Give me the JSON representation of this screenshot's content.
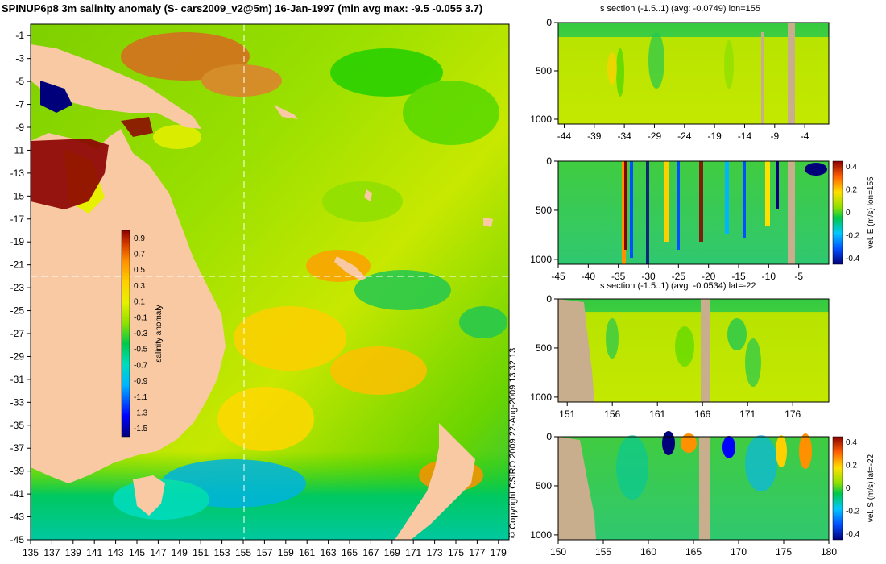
{
  "header": {
    "title": "SPINUP6p8 3m salinity anomaly (S- cars2009_v2@5m) 16-Jan-1997 (min avg max: -9.5 -0.055 3.7)",
    "copyright": "© Copyright CSIRO 2009   22-Aug-2009 13:32:13"
  },
  "colors": {
    "land": "#f9c9a4",
    "section_land": "#c8ae8c",
    "palette": [
      "#00007a",
      "#0000ff",
      "#00b4ff",
      "#00ddc0",
      "#00c84a",
      "#22d000",
      "#8fe000",
      "#e6f000",
      "#ffd000",
      "#ff9000",
      "#d84000",
      "#8b0000"
    ]
  },
  "chart_data": [
    {
      "id": "map",
      "type": "heatmap",
      "title": "SPINUP6p8 3m salinity anomaly (S- cars2009_v2@5m) 16-Jan-1997 (min avg max: -9.5 -0.055 3.7)",
      "x_ticks": [
        "135",
        "137",
        "139",
        "141",
        "143",
        "145",
        "147",
        "149",
        "151",
        "153",
        "155",
        "157",
        "159",
        "161",
        "163",
        "165",
        "167",
        "169",
        "171",
        "173",
        "175",
        "177",
        "179"
      ],
      "y_ticks": [
        "-1",
        "-3",
        "-5",
        "-7",
        "-9",
        "-11",
        "-13",
        "-15",
        "-17",
        "-19",
        "-21",
        "-23",
        "-25",
        "-27",
        "-29",
        "-31",
        "-33",
        "-35",
        "-37",
        "-39",
        "-41",
        "-43",
        "-45"
      ],
      "xlim": [
        135,
        180
      ],
      "ylim": [
        -45,
        0
      ],
      "guide_lon": 155,
      "guide_lat": -22,
      "colorbar": {
        "label": "salinity anomaly",
        "ticks": [
          "0.9",
          "0.7",
          "0.5",
          "0.3",
          "0.1",
          "-0.1",
          "-0.3",
          "-0.5",
          "-0.7",
          "-0.9",
          "-1.1",
          "-1.3",
          "-1.5"
        ],
        "range": [
          -1.6,
          1.0
        ]
      },
      "summary": {
        "min": -9.5,
        "avg": -0.055,
        "max": 3.7
      }
    },
    {
      "id": "s-section-lon",
      "type": "heatmap",
      "title": "s section (-1.5..1) (avg: -0.0749) lon=155",
      "x_ticks": [
        "-44",
        "-39",
        "-34",
        "-29",
        "-24",
        "-19",
        "-14",
        "-9",
        "-4"
      ],
      "y_ticks": [
        "0",
        "500",
        "1000"
      ],
      "xlim": [
        -45,
        0
      ],
      "ylim": [
        1050,
        0
      ]
    },
    {
      "id": "vel-e-section",
      "type": "heatmap",
      "title": "",
      "x_ticks": [
        "-45",
        "-40",
        "-35",
        "-30",
        "-25",
        "-20",
        "-15",
        "-10",
        "-5"
      ],
      "y_ticks": [
        "0",
        "500",
        "1000"
      ],
      "xlim": [
        -45,
        0
      ],
      "ylim": [
        1050,
        0
      ],
      "colorbar": {
        "label": "vel. E (m/s) lon=155",
        "ticks": [
          "0.4",
          "0.2",
          "0",
          "-0.2",
          "-0.4"
        ],
        "range": [
          -0.45,
          0.45
        ]
      }
    },
    {
      "id": "s-section-lat",
      "type": "heatmap",
      "title": "s section (-1.5..1) (avg: -0.0534) lat=-22",
      "x_ticks": [
        "151",
        "156",
        "161",
        "166",
        "171",
        "176"
      ],
      "y_ticks": [
        "0",
        "500",
        "1000"
      ],
      "xlim": [
        150,
        180
      ],
      "ylim": [
        1050,
        0
      ]
    },
    {
      "id": "vel-s-section",
      "type": "heatmap",
      "title": "",
      "x_ticks": [
        "150",
        "155",
        "160",
        "165",
        "170",
        "175",
        "180"
      ],
      "y_ticks": [
        "0",
        "500",
        "1000"
      ],
      "xlim": [
        150,
        180
      ],
      "ylim": [
        1050,
        0
      ],
      "colorbar": {
        "label": "vel. S (m/s) lat=-22",
        "ticks": [
          "0.4",
          "0.2",
          "0",
          "-0.2",
          "-0.4"
        ],
        "range": [
          -0.45,
          0.45
        ]
      }
    }
  ]
}
